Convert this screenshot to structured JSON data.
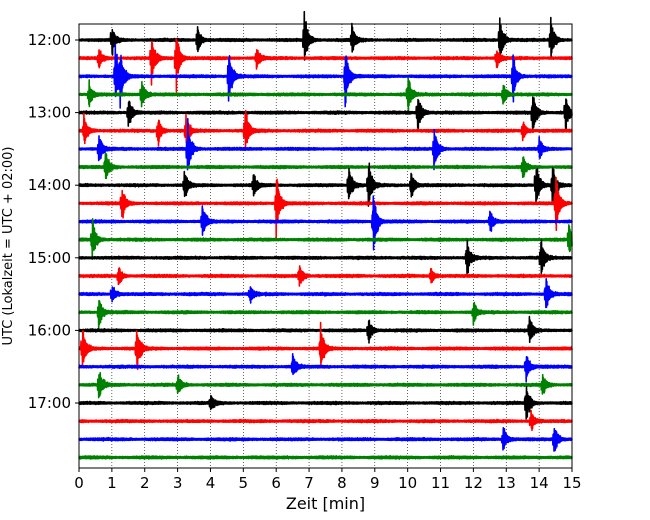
{
  "chart_data": {
    "type": "line",
    "title": "",
    "xlabel": "Zeit  [min]",
    "ylabel": "UTC (Lokalzeit = UTC + 02:00)",
    "xlim": [
      0,
      15
    ],
    "x_ticks": [
      "0",
      "1",
      "2",
      "3",
      "4",
      "5",
      "6",
      "7",
      "8",
      "9",
      "10",
      "11",
      "12",
      "13",
      "14",
      "15"
    ],
    "grid": "vertical dotted at each minute",
    "y_ticks": [
      "12:00",
      "13:00",
      "14:00",
      "15:00",
      "16:00",
      "17:00"
    ],
    "trace_interval_minutes": 15,
    "trace_colors": [
      "#000000",
      "#ff0000",
      "#0000ff",
      "#008000"
    ],
    "traces": [
      {
        "start": "12:00",
        "color": "#000000",
        "events": [
          [
            1.0,
            0.5
          ],
          [
            3.6,
            0.45
          ],
          [
            6.85,
            0.9
          ],
          [
            8.3,
            0.5
          ],
          [
            12.8,
            0.8
          ],
          [
            14.35,
            0.75
          ]
        ]
      },
      {
        "start": "12:15",
        "color": "#ff0000",
        "events": [
          [
            0.6,
            0.3
          ],
          [
            2.2,
            0.8
          ],
          [
            2.95,
            1.0
          ],
          [
            5.4,
            0.35
          ],
          [
            12.7,
            0.35
          ]
        ]
      },
      {
        "start": "12:30",
        "color": "#0000ff",
        "events": [
          [
            1.1,
            1.0
          ],
          [
            1.25,
            0.8
          ],
          [
            4.55,
            1.0
          ],
          [
            8.1,
            1.0
          ],
          [
            13.2,
            0.75
          ]
        ]
      },
      {
        "start": "12:45",
        "color": "#008000",
        "events": [
          [
            0.3,
            0.4
          ],
          [
            1.9,
            0.5
          ],
          [
            10.0,
            0.6
          ],
          [
            12.9,
            0.4
          ]
        ]
      },
      {
        "start": "13:00",
        "color": "#000000",
        "events": [
          [
            1.5,
            0.55
          ],
          [
            10.3,
            0.7
          ],
          [
            13.8,
            0.8
          ],
          [
            14.8,
            0.6
          ]
        ]
      },
      {
        "start": "13:15",
        "color": "#ff0000",
        "events": [
          [
            0.15,
            0.5
          ],
          [
            2.4,
            0.45
          ],
          [
            3.25,
            0.5
          ],
          [
            5.05,
            0.8
          ],
          [
            13.5,
            0.3
          ]
        ]
      },
      {
        "start": "13:30",
        "color": "#0000ff",
        "events": [
          [
            0.6,
            0.5
          ],
          [
            3.3,
            0.9
          ],
          [
            10.8,
            0.75
          ],
          [
            14.0,
            0.35
          ]
        ]
      },
      {
        "start": "13:45",
        "color": "#008000",
        "events": [
          [
            0.8,
            0.6
          ],
          [
            13.5,
            0.45
          ]
        ]
      },
      {
        "start": "14:00",
        "color": "#000000",
        "events": [
          [
            3.2,
            0.5
          ],
          [
            5.3,
            0.4
          ],
          [
            8.2,
            0.7
          ],
          [
            8.8,
            0.9
          ],
          [
            10.1,
            0.5
          ],
          [
            13.9,
            0.8
          ],
          [
            14.4,
            0.7
          ]
        ]
      },
      {
        "start": "14:15",
        "color": "#ff0000",
        "events": [
          [
            1.3,
            0.55
          ],
          [
            6.0,
            1.0
          ],
          [
            14.5,
            1.0
          ]
        ]
      },
      {
        "start": "14:30",
        "color": "#0000ff",
        "events": [
          [
            3.75,
            0.6
          ],
          [
            8.95,
            1.0
          ],
          [
            12.5,
            0.4
          ]
        ]
      },
      {
        "start": "14:45",
        "color": "#008000",
        "events": [
          [
            0.4,
            0.65
          ],
          [
            14.9,
            0.55
          ]
        ]
      },
      {
        "start": "15:00",
        "color": "#000000",
        "events": [
          [
            11.8,
            0.6
          ],
          [
            14.05,
            0.7
          ]
        ]
      },
      {
        "start": "15:15",
        "color": "#ff0000",
        "events": [
          [
            1.2,
            0.3
          ],
          [
            6.7,
            0.4
          ],
          [
            10.7,
            0.3
          ]
        ]
      },
      {
        "start": "15:30",
        "color": "#0000ff",
        "events": [
          [
            1.0,
            0.3
          ],
          [
            5.2,
            0.3
          ],
          [
            14.2,
            0.6
          ]
        ]
      },
      {
        "start": "15:45",
        "color": "#008000",
        "events": [
          [
            0.6,
            0.55
          ],
          [
            12.0,
            0.35
          ]
        ]
      },
      {
        "start": "16:00",
        "color": "#000000",
        "events": [
          [
            8.8,
            0.45
          ],
          [
            13.7,
            0.45
          ]
        ]
      },
      {
        "start": "16:15",
        "color": "#ff0000",
        "events": [
          [
            0.1,
            0.7
          ],
          [
            1.75,
            0.8
          ],
          [
            7.35,
            0.8
          ]
        ]
      },
      {
        "start": "16:30",
        "color": "#0000ff",
        "events": [
          [
            6.5,
            0.4
          ],
          [
            13.6,
            0.5
          ]
        ]
      },
      {
        "start": "16:45",
        "color": "#008000",
        "events": [
          [
            0.6,
            0.55
          ],
          [
            3.0,
            0.35
          ],
          [
            14.1,
            0.35
          ]
        ]
      },
      {
        "start": "17:00",
        "color": "#000000",
        "events": [
          [
            4.0,
            0.3
          ],
          [
            13.6,
            0.7
          ]
        ]
      },
      {
        "start": "17:15",
        "color": "#ff0000",
        "events": [
          [
            13.75,
            0.35
          ]
        ]
      },
      {
        "start": "17:30",
        "color": "#0000ff",
        "events": [
          [
            12.9,
            0.45
          ],
          [
            14.45,
            0.55
          ]
        ]
      },
      {
        "start": "17:45",
        "color": "#008000",
        "events": []
      }
    ]
  }
}
